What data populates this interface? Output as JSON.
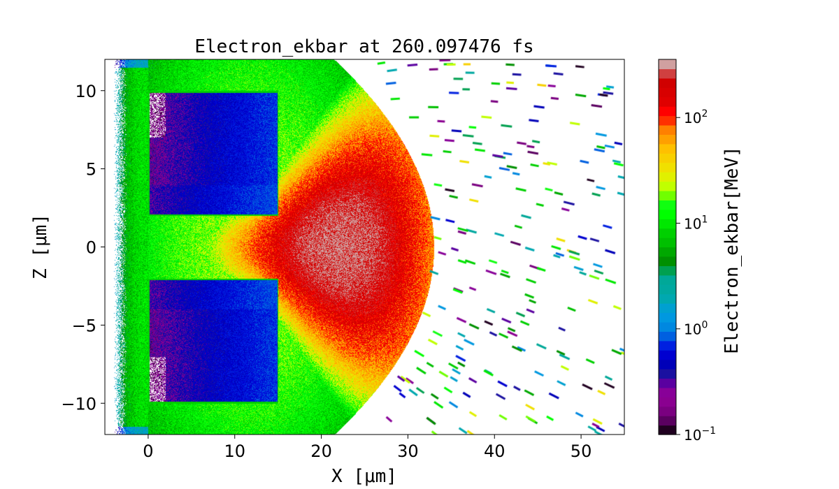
{
  "chart_data": {
    "type": "heatmap",
    "title": "Electron_ekbar at 260.097476 fs",
    "xlabel": "X  [μm]",
    "ylabel": "Z  [μm]",
    "xlim": [
      -5,
      55
    ],
    "ylim": [
      -12,
      12
    ],
    "xticks": [
      0,
      10,
      20,
      30,
      40,
      50
    ],
    "xtick_labels": [
      "0",
      "10",
      "20",
      "30",
      "40",
      "50"
    ],
    "yticks": [
      -10,
      -5,
      0,
      5,
      10
    ],
    "ytick_labels": [
      "−10",
      "−5",
      "0",
      "5",
      "10"
    ],
    "colorbar": {
      "label": "Electron_ekbar[MeV]",
      "scale": "log",
      "range": [
        0.1,
        355
      ],
      "ticks": [
        0.1,
        1,
        10,
        100
      ],
      "tick_labels": [
        {
          "base": "10",
          "exp": "−1"
        },
        {
          "base": "10",
          "exp": "0"
        },
        {
          "base": "10",
          "exp": "1"
        },
        {
          "base": "10",
          "exp": "2"
        }
      ],
      "colors": [
        "#200020",
        "#5a0060",
        "#7a0080",
        "#8a0090",
        "#880098",
        "#5a00a0",
        "#1a10a0",
        "#0000b8",
        "#0000d0",
        "#0020e0",
        "#0060e0",
        "#0088e0",
        "#0098e0",
        "#00a0d0",
        "#00a8b0",
        "#00a8a0",
        "#00a898",
        "#00a050",
        "#009000",
        "#00a800",
        "#00c000",
        "#00d000",
        "#00e800",
        "#00ff00",
        "#10ff10",
        "#70ff00",
        "#c0ff00",
        "#e0f000",
        "#f0e000",
        "#f8d000",
        "#ffc000",
        "#ffa000",
        "#ff8000",
        "#ff3000",
        "#ff0000",
        "#e00000",
        "#d80000",
        "#d00000",
        "#d04040",
        "#d0a0a0"
      ]
    },
    "regions": [
      {
        "name": "target-upper",
        "x": [
          0,
          15
        ],
        "z": [
          2,
          10
        ],
        "typical_value_MeV": 0.6
      },
      {
        "name": "target-lower",
        "x": [
          0,
          15
        ],
        "z": [
          -10,
          -2
        ],
        "typical_value_MeV": 0.6
      },
      {
        "name": "hot-channel",
        "center_x": 22,
        "center_z": 0,
        "peak_value_MeV": 300
      }
    ]
  }
}
